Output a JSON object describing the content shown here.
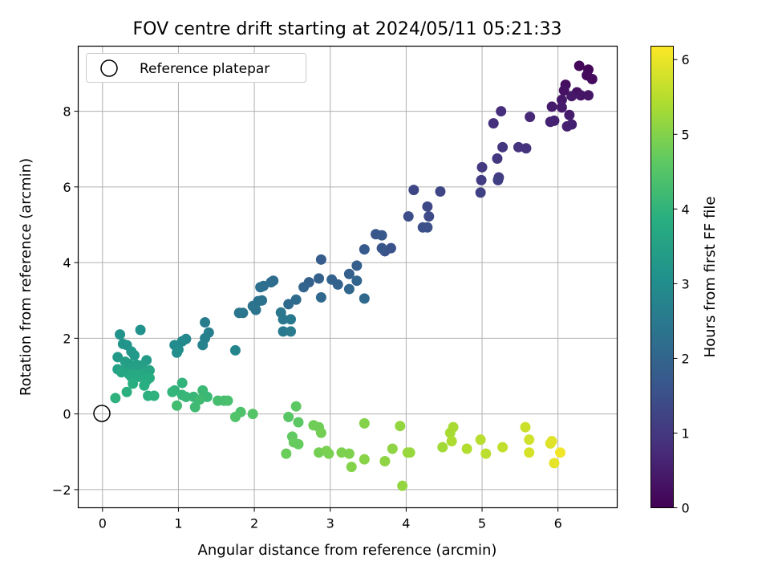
{
  "chart_data": {
    "type": "scatter",
    "title": "FOV centre drift starting at 2024/05/11 05:21:33",
    "xlabel": "Angular distance from reference (arcmin)",
    "ylabel": "Rotation from reference (arcmin)",
    "xlim": [
      -0.32,
      6.78
    ],
    "ylim": [
      -2.48,
      9.72
    ],
    "xticks": [
      0,
      1,
      2,
      3,
      4,
      5,
      6
    ],
    "yticks": [
      -2,
      0,
      2,
      4,
      6,
      8
    ],
    "grid": true,
    "legend": {
      "placement": "top-left",
      "entries": [
        "Reference platepar"
      ]
    },
    "reference_point": {
      "x": 0,
      "y": 0,
      "label": "Reference platepar"
    },
    "colorbar": {
      "label": "Hours from first FF file",
      "colormap": "viridis",
      "range": [
        0,
        6.18
      ],
      "ticks": [
        0,
        1,
        2,
        3,
        4,
        5,
        6
      ]
    },
    "points": [
      [
        6.28,
        9.2,
        0.1
      ],
      [
        6.4,
        9.1,
        0.1
      ],
      [
        6.38,
        8.95,
        0.15
      ],
      [
        6.45,
        8.85,
        0.2
      ],
      [
        6.1,
        8.7,
        0.25
      ],
      [
        6.08,
        8.55,
        0.3
      ],
      [
        6.25,
        8.5,
        0.3
      ],
      [
        6.3,
        8.42,
        0.35
      ],
      [
        6.4,
        8.42,
        0.35
      ],
      [
        6.05,
        8.3,
        0.4
      ],
      [
        6.18,
        8.4,
        0.4
      ],
      [
        5.92,
        8.12,
        0.45
      ],
      [
        6.05,
        8.1,
        0.45
      ],
      [
        6.15,
        7.9,
        0.5
      ],
      [
        6.12,
        7.6,
        0.55
      ],
      [
        6.18,
        7.65,
        0.55
      ],
      [
        5.9,
        7.72,
        0.6
      ],
      [
        5.95,
        7.75,
        0.6
      ],
      [
        5.63,
        7.85,
        0.7
      ],
      [
        5.25,
        8.0,
        0.8
      ],
      [
        5.15,
        7.68,
        0.85
      ],
      [
        5.58,
        7.02,
        0.9
      ],
      [
        5.48,
        7.05,
        0.9
      ],
      [
        5.27,
        7.05,
        0.95
      ],
      [
        5.2,
        6.75,
        1.0
      ],
      [
        5.0,
        6.52,
        1.05
      ],
      [
        4.99,
        6.18,
        1.1
      ],
      [
        5.22,
        6.25,
        1.1
      ],
      [
        5.21,
        6.18,
        1.15
      ],
      [
        4.98,
        5.85,
        1.2
      ],
      [
        4.1,
        5.92,
        1.3
      ],
      [
        4.45,
        5.88,
        1.3
      ],
      [
        4.28,
        5.48,
        1.35
      ],
      [
        4.3,
        5.22,
        1.4
      ],
      [
        4.03,
        5.22,
        1.45
      ],
      [
        4.22,
        4.93,
        1.5
      ],
      [
        4.28,
        4.93,
        1.5
      ],
      [
        3.8,
        4.38,
        1.6
      ],
      [
        3.72,
        4.3,
        1.6
      ],
      [
        3.68,
        4.38,
        1.65
      ],
      [
        3.6,
        4.75,
        1.65
      ],
      [
        3.68,
        4.72,
        1.7
      ],
      [
        3.45,
        4.35,
        1.75
      ],
      [
        2.88,
        4.08,
        1.8
      ],
      [
        3.35,
        3.92,
        1.85
      ],
      [
        3.25,
        3.7,
        1.85
      ],
      [
        2.85,
        3.58,
        1.9
      ],
      [
        2.72,
        3.48,
        1.9
      ],
      [
        3.02,
        3.55,
        1.95
      ],
      [
        3.1,
        3.42,
        1.95
      ],
      [
        2.65,
        3.35,
        2.0
      ],
      [
        3.35,
        3.52,
        2.0
      ],
      [
        3.25,
        3.3,
        2.05
      ],
      [
        2.88,
        3.08,
        2.1
      ],
      [
        3.45,
        3.05,
        2.1
      ],
      [
        2.55,
        3.02,
        2.15
      ],
      [
        2.45,
        2.9,
        2.15
      ],
      [
        2.25,
        3.52,
        2.2
      ],
      [
        2.22,
        3.48,
        2.2
      ],
      [
        2.12,
        3.38,
        2.25
      ],
      [
        2.08,
        3.35,
        2.25
      ],
      [
        2.1,
        3.0,
        2.3
      ],
      [
        2.05,
        2.98,
        2.3
      ],
      [
        1.98,
        2.85,
        2.35
      ],
      [
        2.02,
        2.75,
        2.35
      ],
      [
        1.85,
        2.67,
        2.4
      ],
      [
        1.8,
        2.67,
        2.4
      ],
      [
        2.35,
        2.68,
        2.45
      ],
      [
        2.38,
        2.5,
        2.45
      ],
      [
        2.48,
        2.5,
        2.5
      ],
      [
        2.38,
        2.18,
        2.5
      ],
      [
        2.48,
        2.18,
        2.55
      ],
      [
        1.35,
        2.42,
        2.6
      ],
      [
        1.4,
        2.15,
        2.65
      ],
      [
        1.35,
        2.0,
        2.7
      ],
      [
        1.32,
        1.82,
        2.75
      ],
      [
        1.75,
        1.68,
        2.8
      ],
      [
        1.1,
        1.98,
        2.85
      ],
      [
        1.05,
        1.92,
        2.9
      ],
      [
        0.95,
        1.82,
        2.95
      ],
      [
        1.0,
        1.7,
        3.0
      ],
      [
        0.98,
        1.62,
        3.05
      ],
      [
        0.5,
        2.22,
        3.1
      ],
      [
        0.23,
        2.1,
        3.15
      ],
      [
        0.27,
        1.85,
        3.2
      ],
      [
        0.32,
        1.82,
        3.2
      ],
      [
        0.38,
        1.65,
        3.25
      ],
      [
        0.42,
        1.55,
        3.3
      ],
      [
        0.2,
        1.5,
        3.3
      ],
      [
        0.58,
        1.42,
        3.35
      ],
      [
        0.3,
        1.38,
        3.4
      ],
      [
        0.35,
        1.32,
        3.4
      ],
      [
        0.45,
        1.3,
        3.45
      ],
      [
        0.52,
        1.28,
        3.45
      ],
      [
        0.4,
        1.22,
        3.5
      ],
      [
        0.48,
        1.2,
        3.5
      ],
      [
        0.2,
        1.18,
        3.55
      ],
      [
        0.28,
        1.15,
        3.55
      ],
      [
        0.62,
        1.15,
        3.6
      ],
      [
        0.55,
        1.1,
        3.6
      ],
      [
        0.25,
        1.1,
        3.65
      ],
      [
        0.35,
        1.05,
        3.65
      ],
      [
        0.42,
        1.05,
        3.7
      ],
      [
        0.5,
        1.05,
        3.7
      ],
      [
        0.38,
        0.98,
        3.75
      ],
      [
        0.48,
        0.98,
        3.75
      ],
      [
        0.62,
        0.95,
        3.8
      ],
      [
        0.58,
        0.88,
        3.8
      ],
      [
        0.4,
        0.8,
        3.85
      ],
      [
        0.55,
        0.75,
        3.85
      ],
      [
        0.32,
        0.58,
        3.9
      ],
      [
        0.6,
        0.48,
        3.9
      ],
      [
        0.68,
        0.48,
        3.95
      ],
      [
        0.17,
        0.42,
        3.95
      ],
      [
        1.05,
        0.82,
        4.0
      ],
      [
        0.95,
        0.62,
        4.0
      ],
      [
        0.92,
        0.58,
        4.05
      ],
      [
        1.05,
        0.5,
        4.05
      ],
      [
        1.1,
        0.45,
        4.1
      ],
      [
        1.2,
        0.45,
        4.1
      ],
      [
        1.32,
        0.62,
        4.15
      ],
      [
        1.38,
        0.45,
        4.15
      ],
      [
        1.28,
        0.38,
        4.2
      ],
      [
        1.22,
        0.18,
        4.2
      ],
      [
        0.98,
        0.22,
        4.25
      ],
      [
        1.52,
        0.35,
        4.3
      ],
      [
        1.6,
        0.35,
        4.3
      ],
      [
        1.65,
        0.35,
        4.35
      ],
      [
        1.82,
        0.05,
        4.4
      ],
      [
        1.75,
        -0.08,
        4.45
      ],
      [
        1.98,
        0.0,
        4.5
      ],
      [
        2.45,
        -0.08,
        4.55
      ],
      [
        2.55,
        0.2,
        4.6
      ],
      [
        2.58,
        -0.22,
        4.6
      ],
      [
        2.5,
        -0.6,
        4.65
      ],
      [
        2.52,
        -0.75,
        4.7
      ],
      [
        2.58,
        -0.8,
        4.7
      ],
      [
        2.42,
        -1.05,
        4.75
      ],
      [
        2.78,
        -0.3,
        4.8
      ],
      [
        2.85,
        -0.35,
        4.8
      ],
      [
        2.88,
        -0.5,
        4.85
      ],
      [
        2.85,
        -1.02,
        4.85
      ],
      [
        2.95,
        -0.98,
        4.9
      ],
      [
        2.98,
        -1.05,
        4.9
      ],
      [
        3.15,
        -1.02,
        4.95
      ],
      [
        3.25,
        -1.05,
        4.95
      ],
      [
        3.28,
        -1.4,
        5.0
      ],
      [
        3.45,
        -0.25,
        5.0
      ],
      [
        3.45,
        -1.2,
        5.05
      ],
      [
        3.72,
        -1.25,
        5.1
      ],
      [
        3.82,
        -0.92,
        5.1
      ],
      [
        3.92,
        -0.32,
        5.15
      ],
      [
        3.95,
        -1.9,
        5.15
      ],
      [
        4.02,
        -1.02,
        5.2
      ],
      [
        4.05,
        -1.02,
        5.2
      ],
      [
        4.48,
        -0.88,
        5.3
      ],
      [
        4.58,
        -0.5,
        5.35
      ],
      [
        4.62,
        -0.35,
        5.35
      ],
      [
        4.6,
        -0.72,
        5.4
      ],
      [
        4.8,
        -0.92,
        5.45
      ],
      [
        4.98,
        -0.68,
        5.5
      ],
      [
        5.05,
        -1.05,
        5.55
      ],
      [
        5.27,
        -0.88,
        5.6
      ],
      [
        5.57,
        -0.35,
        5.7
      ],
      [
        5.62,
        -0.68,
        5.75
      ],
      [
        5.62,
        -1.02,
        5.8
      ],
      [
        5.9,
        -0.78,
        5.85
      ],
      [
        5.92,
        -0.72,
        5.9
      ],
      [
        5.95,
        -1.3,
        5.95
      ],
      [
        6.03,
        -1.02,
        6.05
      ]
    ]
  }
}
